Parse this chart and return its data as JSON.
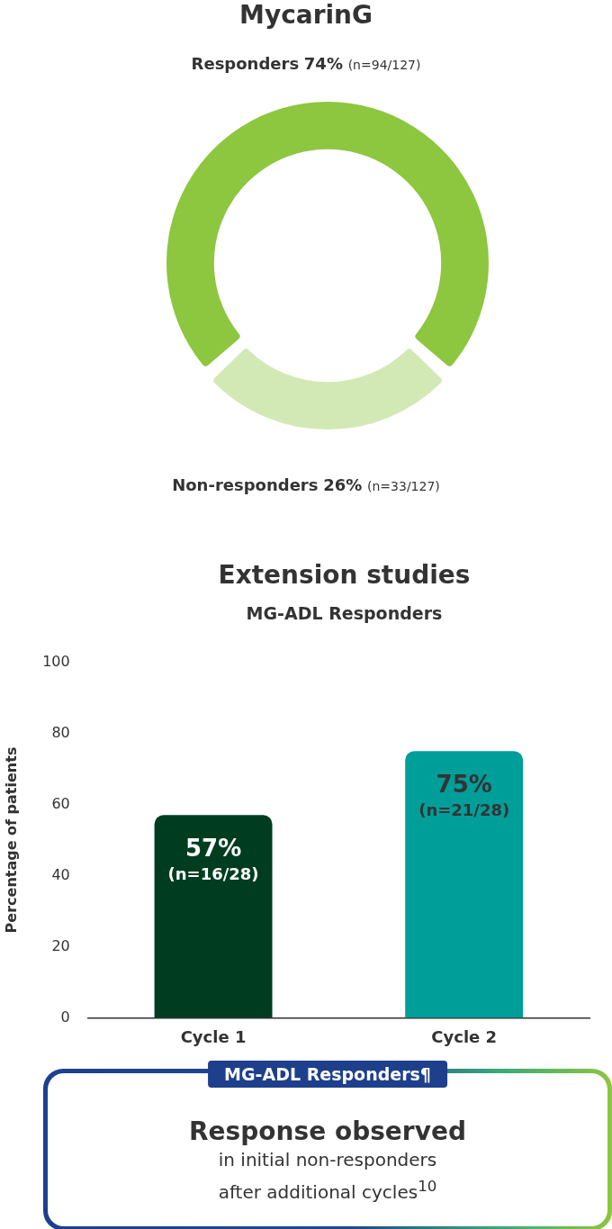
{
  "chart_data": [
    {
      "type": "donut",
      "title": "MycarinG",
      "categories": [
        "Responders",
        "Non-responders"
      ],
      "values": [
        74,
        26
      ],
      "colors": [
        "#8dc63f",
        "#d3e9b5"
      ],
      "value_labels": [
        "74%",
        "26%"
      ],
      "annotations": [
        "(n=94/127)",
        "(n=33/127)"
      ]
    },
    {
      "type": "bar",
      "title": "Extension studies",
      "subtitle": "MG-ADL Responders",
      "ylabel": "Percentage of patients",
      "categories": [
        "Cycle 1",
        "Cycle 2"
      ],
      "values": [
        57,
        75
      ],
      "colors": [
        "#003d20",
        "#009e99"
      ],
      "value_labels": [
        "57%",
        "75%"
      ],
      "ylim": [
        0,
        100
      ],
      "yticks": [
        0,
        20,
        40,
        60,
        80,
        100
      ],
      "grid": false,
      "legend": false,
      "annotations": [
        "(n=16/28)",
        "(n=21/28)"
      ]
    },
    {
      "type": "other",
      "subtitle": "MG-ADL Responders¶",
      "title": "Response observed",
      "annotations": [
        "in initial non-responders",
        "after additional cycles$^{10}$"
      ]
    }
  ]
}
